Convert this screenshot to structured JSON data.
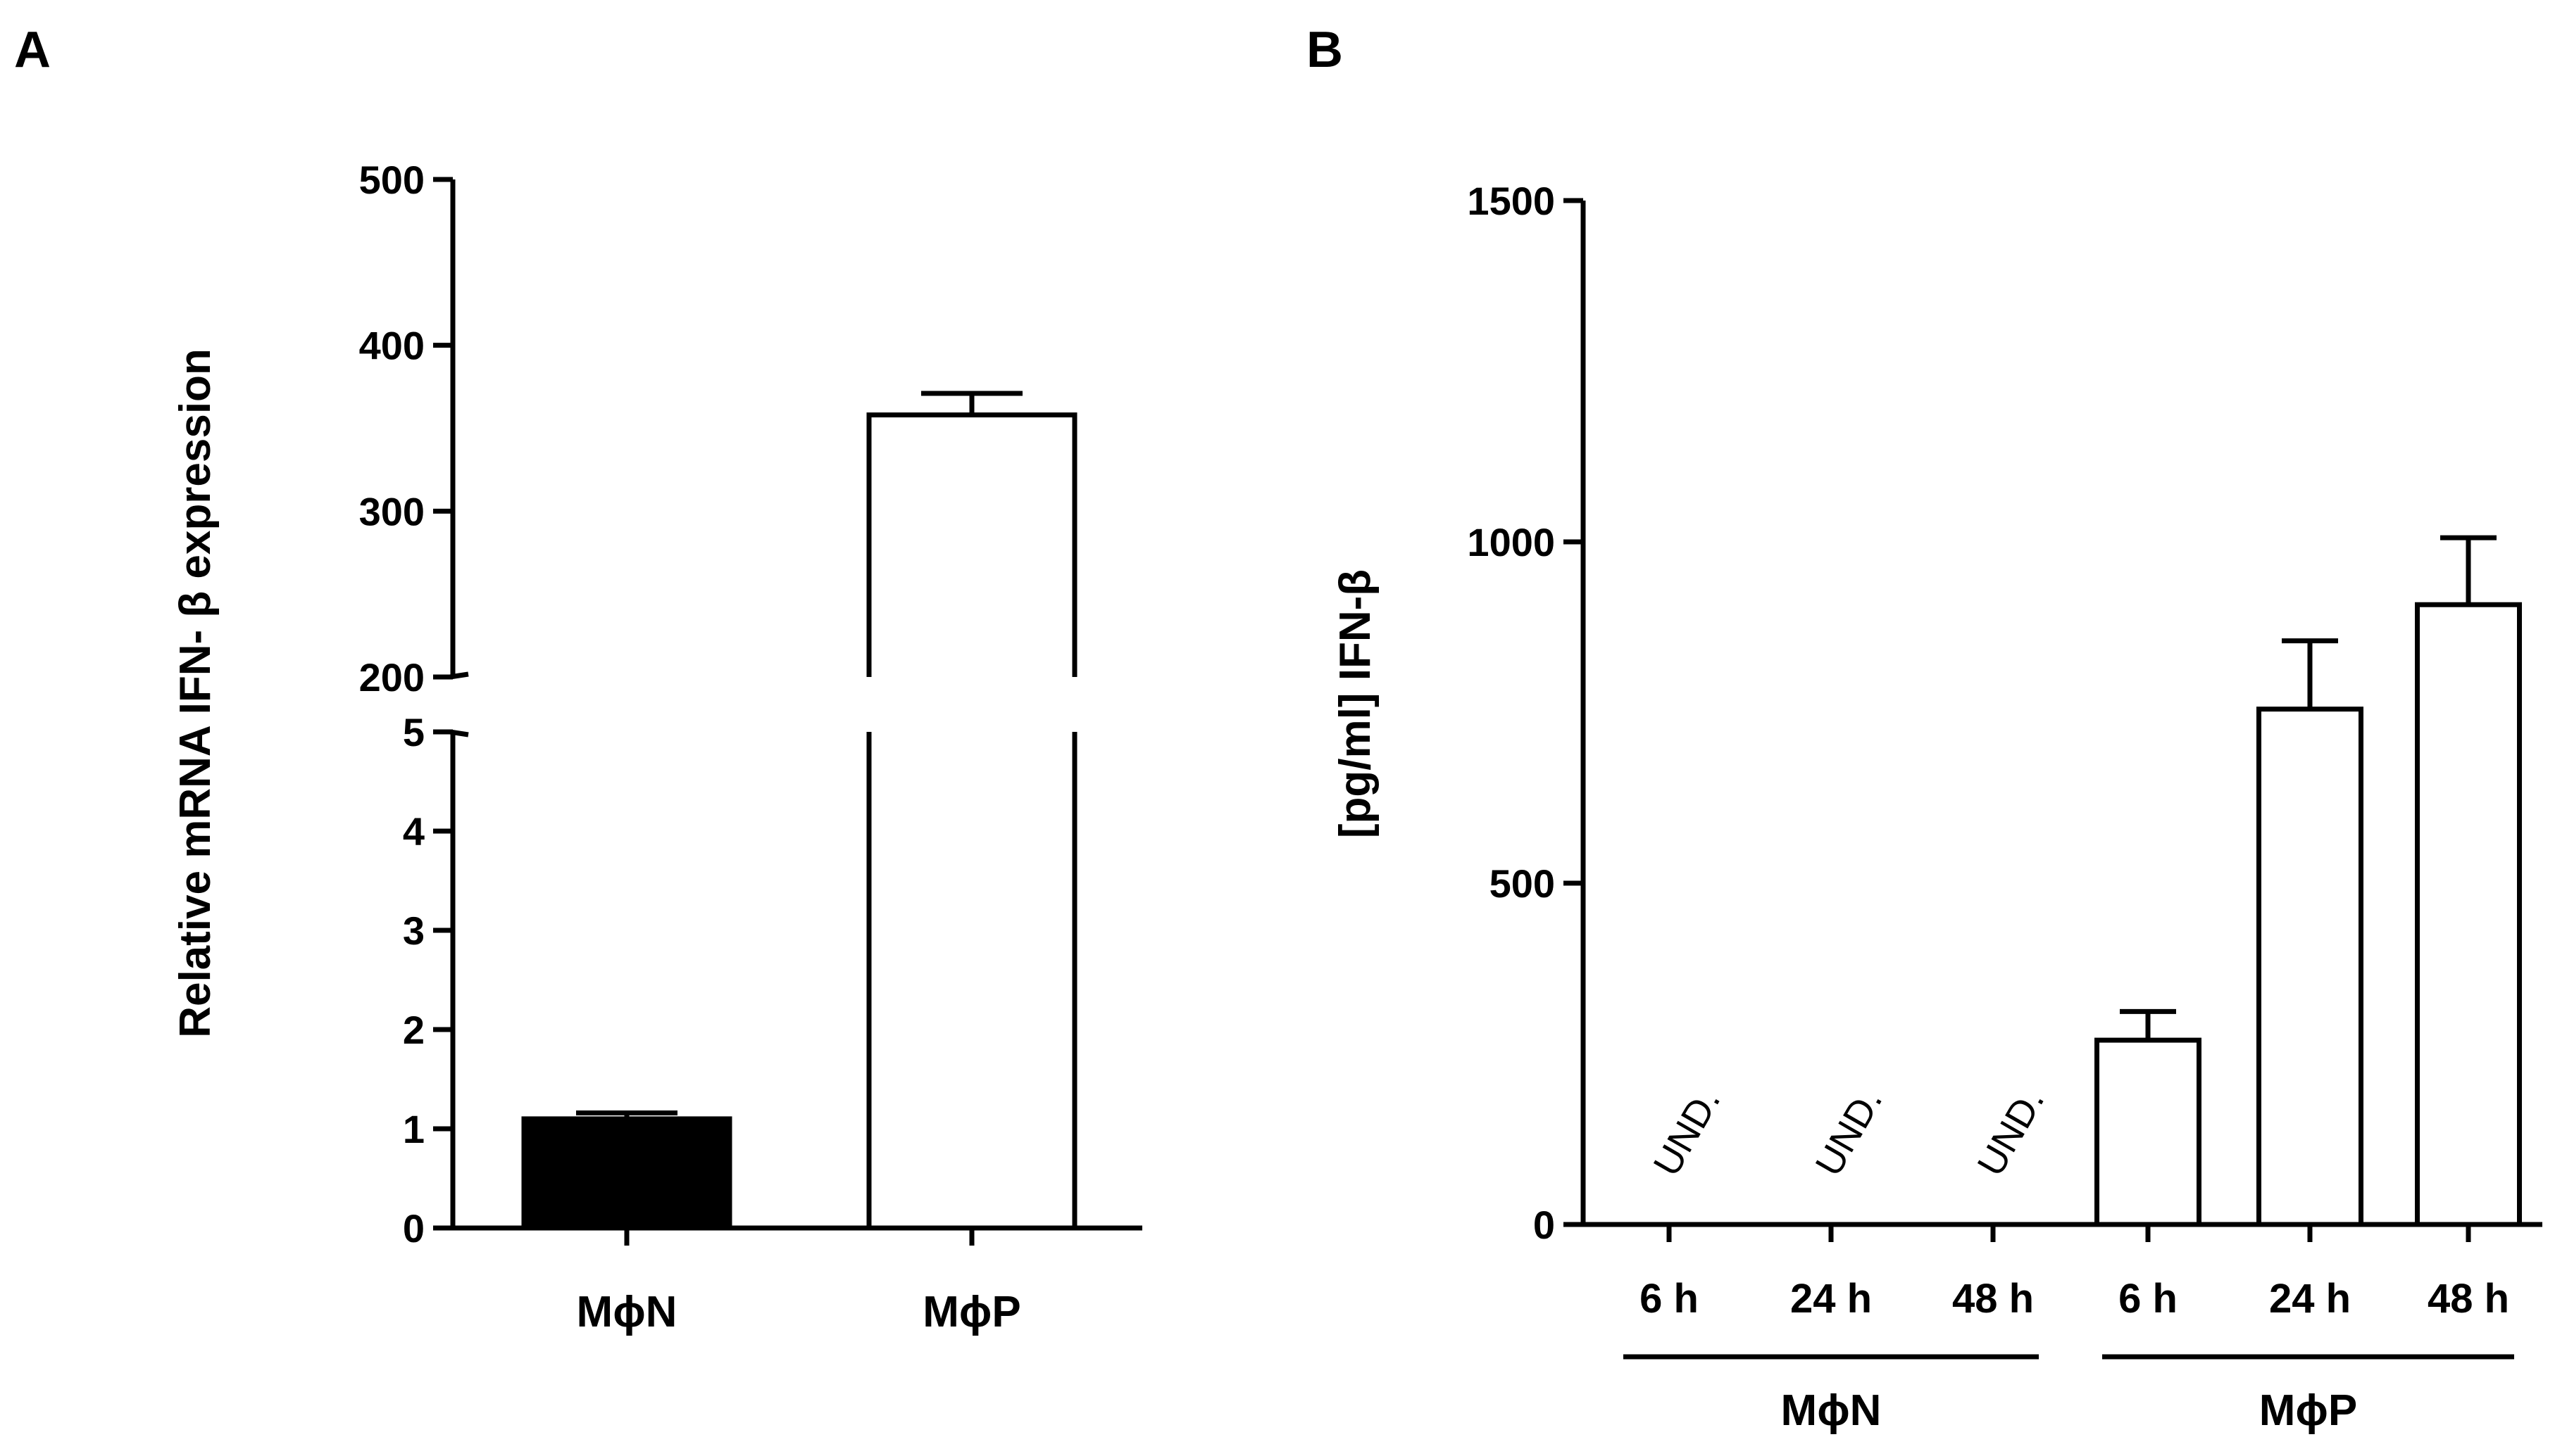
{
  "panels": [
    {
      "label": "A"
    },
    {
      "label": "B"
    }
  ],
  "chart_data": [
    {
      "type": "bar",
      "panel": "A",
      "ylabel": "Relative mRNA IFN- β expression",
      "xlabel": "",
      "y_axis_break": {
        "lower_range": [
          0,
          5
        ],
        "upper_range": [
          200,
          500
        ]
      },
      "lower_ticks": [
        "0",
        "1",
        "2",
        "3",
        "4",
        "5"
      ],
      "upper_ticks": [
        "200",
        "300",
        "400",
        "500"
      ],
      "categories": [
        "MϕN",
        "MϕP"
      ],
      "values": [
        1.1,
        358
      ],
      "errors": [
        0.06,
        13
      ],
      "fills": [
        "#000000",
        "#ffffff"
      ]
    },
    {
      "type": "bar",
      "panel": "B",
      "ylabel": "[pg/ml] IFN-β",
      "xlabel": "",
      "ylim": [
        0,
        1500
      ],
      "yticks": [
        "0",
        "500",
        "1000",
        "1500"
      ],
      "categories": [
        "6 h",
        "24 h",
        "48 h",
        "6 h",
        "24 h",
        "48 h"
      ],
      "values": [
        null,
        null,
        null,
        270,
        755,
        908
      ],
      "errors": [
        null,
        null,
        null,
        42,
        100,
        98
      ],
      "annotations": [
        "UND.",
        "UND.",
        "UND.",
        "",
        "",
        ""
      ],
      "groups": [
        {
          "name": "MϕN",
          "members": [
            0,
            1,
            2
          ]
        },
        {
          "name": "MϕP",
          "members": [
            3,
            4,
            5
          ]
        }
      ],
      "fills": [
        "#ffffff",
        "#ffffff",
        "#ffffff",
        "#ffffff",
        "#ffffff",
        "#ffffff"
      ]
    }
  ]
}
